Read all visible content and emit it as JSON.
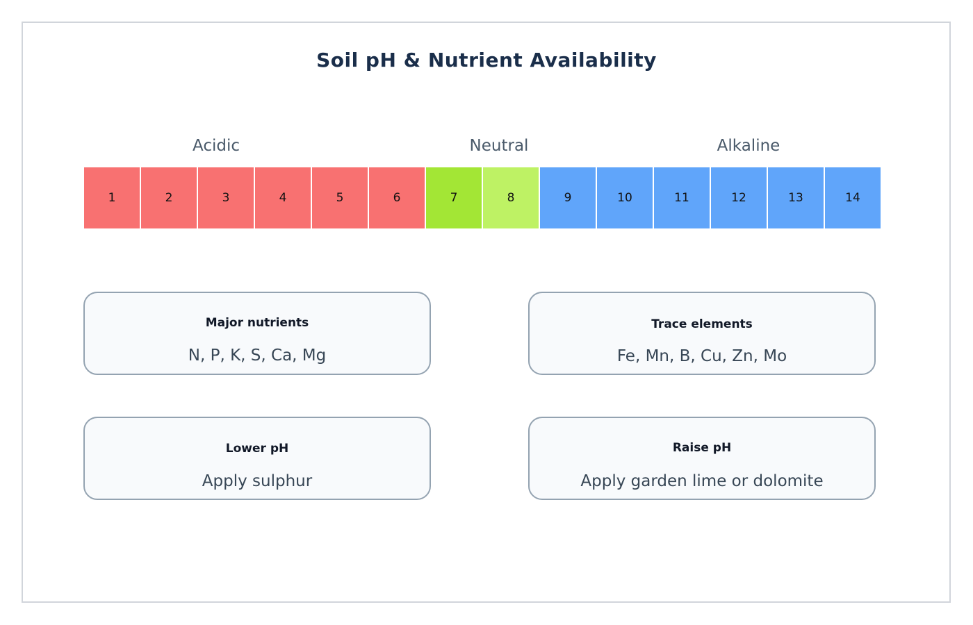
{
  "title": "Soil pH & Nutrient Availability",
  "zones": {
    "acidic": "Acidic",
    "neutral": "Neutral",
    "alkaline": "Alkaline"
  },
  "colors": {
    "acidic": "#f87171",
    "neutral_dark": "#a3e635",
    "neutral_light": "#bef264",
    "alkaline": "#60a5fa"
  },
  "scale": [
    {
      "label": "1",
      "zone": "acidic"
    },
    {
      "label": "2",
      "zone": "acidic"
    },
    {
      "label": "3",
      "zone": "acidic"
    },
    {
      "label": "4",
      "zone": "acidic"
    },
    {
      "label": "5",
      "zone": "acidic"
    },
    {
      "label": "6",
      "zone": "acidic"
    },
    {
      "label": "7",
      "zone": "neutral_dark"
    },
    {
      "label": "8",
      "zone": "neutral_light"
    },
    {
      "label": "9",
      "zone": "alkaline"
    },
    {
      "label": "10",
      "zone": "alkaline"
    },
    {
      "label": "11",
      "zone": "alkaline"
    },
    {
      "label": "12",
      "zone": "alkaline"
    },
    {
      "label": "13",
      "zone": "alkaline"
    },
    {
      "label": "14",
      "zone": "alkaline"
    }
  ],
  "cards": {
    "major": {
      "title": "Major nutrients",
      "body": "N, P, K, S, Ca, Mg"
    },
    "trace": {
      "title": "Trace elements",
      "body": "Fe, Mn, B, Cu, Zn, Mo"
    },
    "lower": {
      "title": "Lower pH",
      "body": "Apply sulphur"
    },
    "raise": {
      "title": "Raise pH",
      "body": "Apply garden lime or dolomite"
    }
  }
}
